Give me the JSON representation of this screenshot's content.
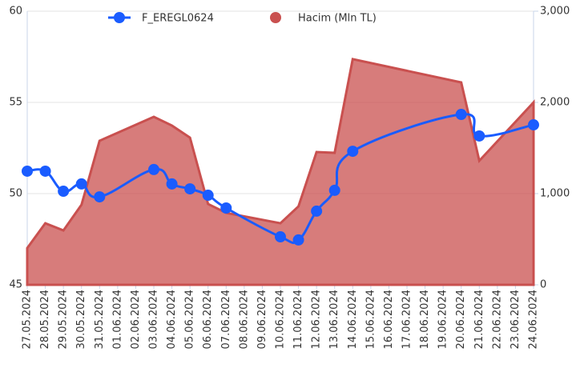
{
  "chart_data": {
    "type": "line-area",
    "categories": [
      "27.05.2024",
      "28.05.2024",
      "29.05.2024",
      "30.05.2024",
      "31.05.2024",
      "01.06.2024",
      "02.06.2024",
      "03.06.2024",
      "04.06.2024",
      "05.06.2024",
      "06.06.2024",
      "07.06.2024",
      "08.06.2024",
      "09.06.2024",
      "10.06.2024",
      "11.06.2024",
      "12.06.2024",
      "13.06.2024",
      "14.06.2024",
      "15.06.2024",
      "16.06.2024",
      "17.06.2024",
      "18.06.2024",
      "19.06.2024",
      "20.06.2024",
      "21.06.2024",
      "22.06.2024",
      "23.06.2024",
      "24.06.2024"
    ],
    "series": [
      {
        "name": "F_EREGL0624",
        "color": "#1a5cff",
        "kind": "line",
        "axis": "y",
        "values": [
          51.23,
          51.23,
          50.13,
          50.53,
          49.82,
          null,
          null,
          51.32,
          50.53,
          50.26,
          49.91,
          49.21,
          null,
          null,
          47.63,
          47.46,
          49.04,
          50.18,
          52.32,
          null,
          null,
          null,
          null,
          null,
          54.34,
          53.16,
          null,
          null,
          53.77
        ]
      },
      {
        "name": "Hacim (Mln TL)",
        "color": "#c9504f",
        "kind": "area",
        "axis": "y2",
        "values": [
          403,
          675,
          596,
          877,
          1579,
          null,
          null,
          1842,
          1746,
          1614,
          886,
          789,
          null,
          null,
          675,
          860,
          1456,
          1447,
          2474,
          null,
          null,
          null,
          null,
          null,
          2219,
          1360,
          null,
          null,
          2000
        ]
      }
    ],
    "ylim": [
      45,
      60
    ],
    "yticks": [
      45,
      50,
      55,
      60
    ],
    "y2lim": [
      0,
      3000
    ],
    "y2ticks": [
      0,
      {
        "value": 1000,
        "label": "1,000"
      },
      {
        "value": 2000,
        "label": "2,000"
      },
      {
        "value": 3000,
        "label": "3,000"
      }
    ],
    "grid": true,
    "connect_gaps": true,
    "legend": "top"
  }
}
